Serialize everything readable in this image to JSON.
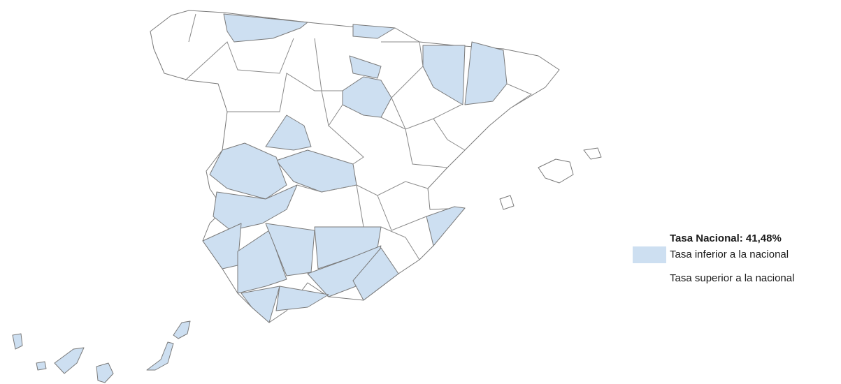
{
  "legend": {
    "title": "Tasa Nacional: 41,48%",
    "items": [
      {
        "label": "Tasa inferior a la nacional",
        "color": "#cddff1"
      },
      {
        "label": "Tasa superior a la nacional",
        "color": "#ffffff"
      }
    ]
  }
}
